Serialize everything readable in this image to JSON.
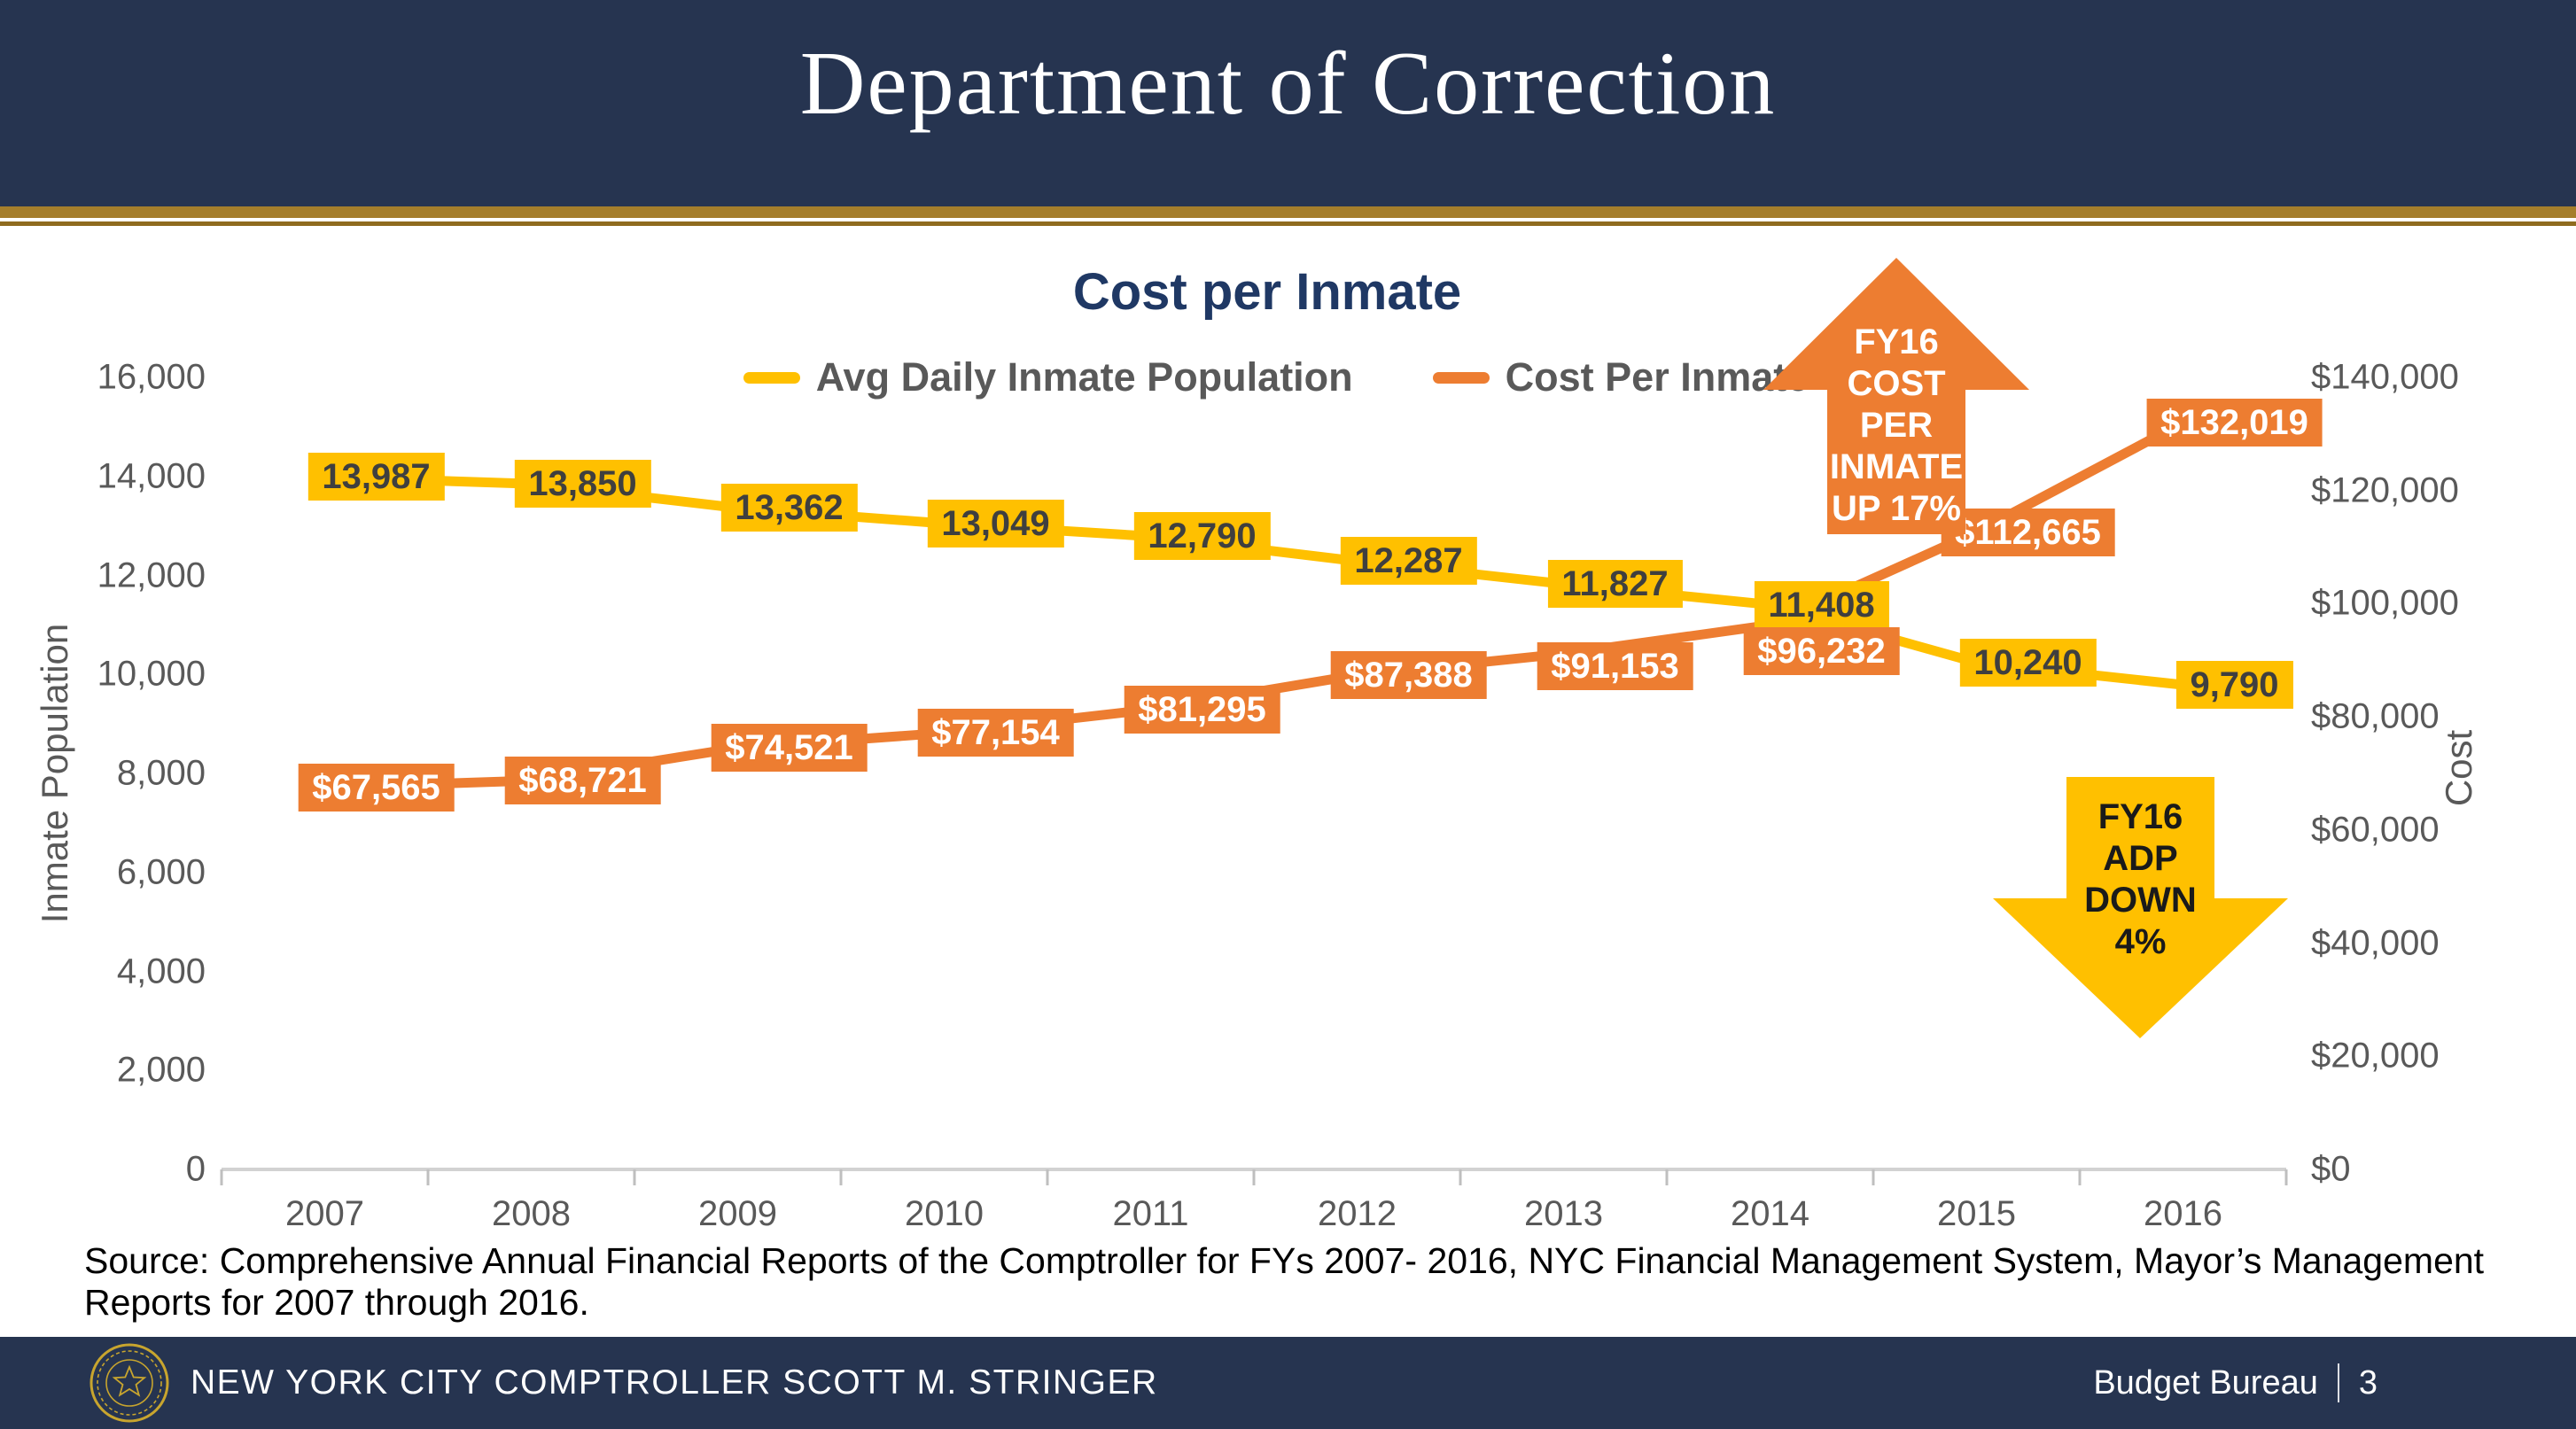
{
  "header": {
    "title": "Department of Correction"
  },
  "colors": {
    "navy": "#263450",
    "gold_band": "#A57E2B",
    "gold_thin": "#8F6B1F",
    "title_navy": "#1F3864",
    "axis_gray": "#595959",
    "axis_line": "#D2D2D2",
    "tick_mark": "#BFBFBF",
    "population_yellow": "#FFC000",
    "cost_orange": "#ED7D31",
    "yellow_label_text": "#3F3F3F",
    "white": "#ffffff"
  },
  "chart_data": {
    "type": "line",
    "title": "Cost per Inmate",
    "categories": [
      "2007",
      "2008",
      "2009",
      "2010",
      "2011",
      "2012",
      "2013",
      "2014",
      "2015",
      "2016"
    ],
    "series": [
      {
        "name": "Avg Daily Inmate Population",
        "axis": "left",
        "color": "#FFC000",
        "label_text_color": "#3F3F3F",
        "values": [
          13987,
          13850,
          13362,
          13049,
          12790,
          12287,
          11827,
          11408,
          10240,
          9790
        ],
        "labels": [
          "13,987",
          "13,850",
          "13,362",
          "13,049",
          "12,790",
          "12,287",
          "11,827",
          "11,408",
          "10,240",
          "9,790"
        ]
      },
      {
        "name": "Cost Per Inmate",
        "axis": "right",
        "color": "#ED7D31",
        "label_text_color": "#ffffff",
        "values": [
          67565,
          68721,
          74521,
          77154,
          81295,
          87388,
          91153,
          96232,
          112665,
          132019
        ],
        "labels": [
          "$67,565",
          "$68,721",
          "$74,521",
          "$77,154",
          "$81,295",
          "$87,388",
          "$91,153",
          "$96,232",
          "$112,665",
          "$132,019"
        ]
      }
    ],
    "left_axis": {
      "title": "Inmate Population",
      "min": 0,
      "max": 16000,
      "step": 2000,
      "ticks": [
        "0",
        "2,000",
        "4,000",
        "6,000",
        "8,000",
        "10,000",
        "12,000",
        "14,000",
        "16,000"
      ]
    },
    "right_axis": {
      "title": "Cost",
      "min": 0,
      "max": 140000,
      "step": 20000,
      "ticks": [
        "$0",
        "$20,000",
        "$40,000",
        "$60,000",
        "$80,000",
        "$100,000",
        "$120,000",
        "$140,000"
      ]
    },
    "legend_position": "top",
    "grid": false
  },
  "annotations": {
    "up_arrow": {
      "lines": [
        "FY16",
        "COST",
        "PER",
        "INMATE",
        "UP 17%"
      ],
      "color": "#ED7D31"
    },
    "down_arrow": {
      "lines": [
        "FY16",
        "ADP",
        "DOWN",
        "4%"
      ],
      "color": "#FFC000"
    }
  },
  "source_note": "Source: Comprehensive Annual Financial Reports of the Comptroller for FYs 2007- 2016, NYC Financial Management System, Mayor’s Management Reports for 2007 through 2016.",
  "footer": {
    "left": "NEW YORK CITY COMPTROLLER SCOTT M. STRINGER",
    "right_label": "Budget Bureau",
    "right_separator": "|",
    "page_number": "3",
    "seal_icon": "nyc-comptroller-seal-icon"
  }
}
